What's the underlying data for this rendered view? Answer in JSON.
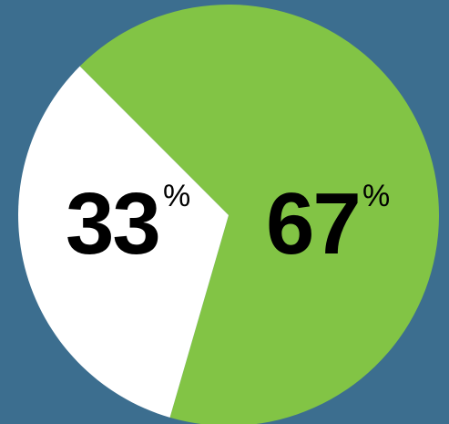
{
  "colors": {
    "background": "#3c6e8f",
    "primary_slice": "#82c445",
    "secondary_slice": "#ffffff",
    "label_text": "#000000"
  },
  "chart_data": {
    "type": "pie",
    "slices": [
      {
        "value": 67,
        "color": "#82c445",
        "label": "67",
        "unit": "%"
      },
      {
        "value": 33,
        "color": "#ffffff",
        "label": "33",
        "unit": "%"
      }
    ],
    "start_angle_deg": 225,
    "direction": "clockwise",
    "legend": "none"
  }
}
